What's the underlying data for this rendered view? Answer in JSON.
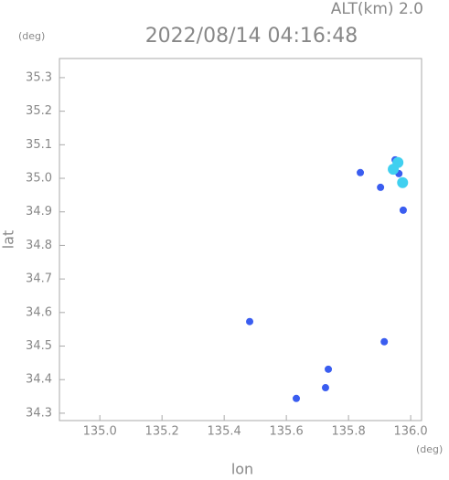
{
  "chart_data": {
    "type": "scatter",
    "header": "ALT(km) 2.0",
    "title": "2022/08/14 04:16:48",
    "y_unit": "(deg)",
    "x_unit": "(deg)",
    "xlabel": "lon",
    "ylabel": "lat",
    "xlim": [
      134.87,
      136.035
    ],
    "ylim": [
      34.278,
      35.357
    ],
    "xticks": [
      {
        "value": 135,
        "label": "135.0"
      },
      135.2,
      135.4,
      135.6,
      135.8,
      {
        "value": 136,
        "label": "136.0"
      }
    ],
    "yticks": [
      34.3,
      34.4,
      34.5,
      34.6,
      34.7,
      34.8,
      34.9,
      {
        "value": 35,
        "label": "35.0"
      },
      35.1,
      35.2,
      35.3
    ],
    "series": [
      {
        "color": "#3a5df0",
        "x": [
          135.838,
          135.903,
          135.976,
          135.915,
          135.482,
          135.735,
          135.726,
          135.632,
          135.962,
          135.95
        ],
        "values": [
          35.017,
          34.973,
          34.905,
          34.513,
          34.573,
          34.431,
          34.376,
          34.344,
          35.014,
          35.055
        ]
      },
      {
        "color": "#40d0f0",
        "x": [
          135.959,
          135.974,
          135.944
        ],
        "values": [
          35.047,
          34.987,
          35.027
        ]
      }
    ]
  }
}
